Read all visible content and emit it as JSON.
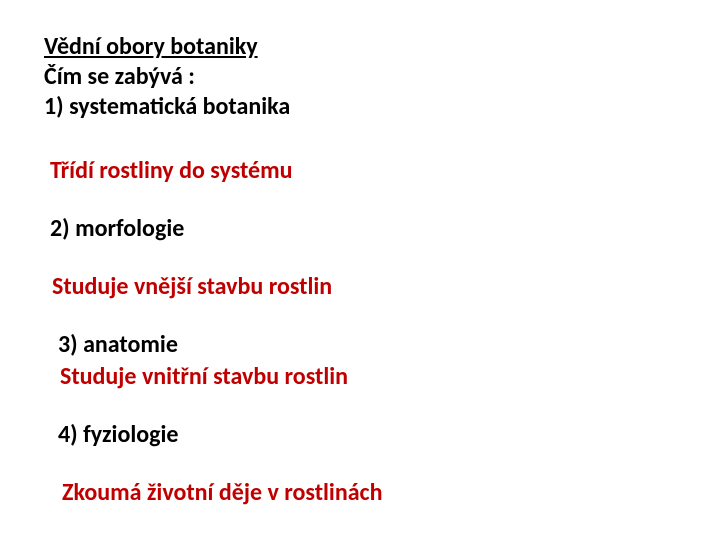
{
  "colors": {
    "heading": "#000000",
    "answer": "#c00000",
    "background": "#ffffff"
  },
  "typography": {
    "font_family": "Calibri, Arial, sans-serif",
    "font_size_pt": 18,
    "font_weight": 700
  },
  "title": "Vědní obory botaniky",
  "subtitle": "Čím se zabývá :",
  "items": [
    {
      "q": "1) systematická botanika",
      "a": "Třídí rostliny do systému"
    },
    {
      "q": "2) morfologie",
      "a": "Studuje vnější stavbu rostlin"
    },
    {
      "q": "3) anatomie",
      "a": "Studuje vnitřní stavbu rostlin"
    },
    {
      "q": "4) fyziologie",
      "a": "Zkoumá životní děje v rostlinách"
    }
  ]
}
